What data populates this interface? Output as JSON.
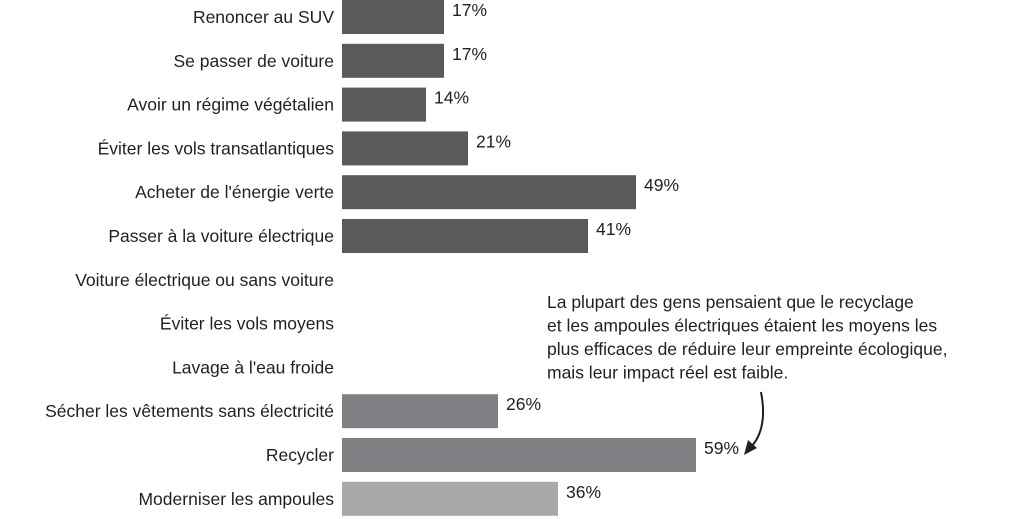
{
  "chart_data": {
    "type": "bar",
    "orientation": "horizontal",
    "categories": [
      "Renoncer au SUV",
      "Se passer de voiture",
      "Avoir un régime végétalien",
      "Éviter les vols transatlantiques",
      "Acheter de l'énergie verte",
      "Passer à la voiture électrique",
      "Voiture électrique ou sans voiture",
      "Éviter les vols moyens",
      "Lavage à l'eau froide",
      "Sécher les vêtements sans électricité",
      "Recycler",
      "Moderniser les ampoules"
    ],
    "values": [
      17,
      17,
      14,
      21,
      49,
      41,
      null,
      null,
      null,
      26,
      59,
      36
    ],
    "value_labels": [
      "17%",
      "17%",
      "14%",
      "21%",
      "49%",
      "41%",
      "",
      "",
      "",
      "26%",
      "59%",
      "36%"
    ],
    "bar_colors": [
      "#5a5a5c",
      "#5a5a5c",
      "#5a5a5c",
      "#5a5a5c",
      "#5a5a5c",
      "#5a5a5c",
      "",
      "",
      "",
      "#808184",
      "#808184",
      "#a7a8aa"
    ],
    "annotation": [
      "La plupart des gens pensaient que le recyclage",
      "et les ampoules électriques étaient les moyens les",
      "plus efficaces de réduire leur empreinte écologique,",
      "mais leur impact réel est faible."
    ],
    "xlim": [
      0,
      100
    ],
    "grid": false,
    "title": "",
    "xlabel": "",
    "ylabel": ""
  }
}
